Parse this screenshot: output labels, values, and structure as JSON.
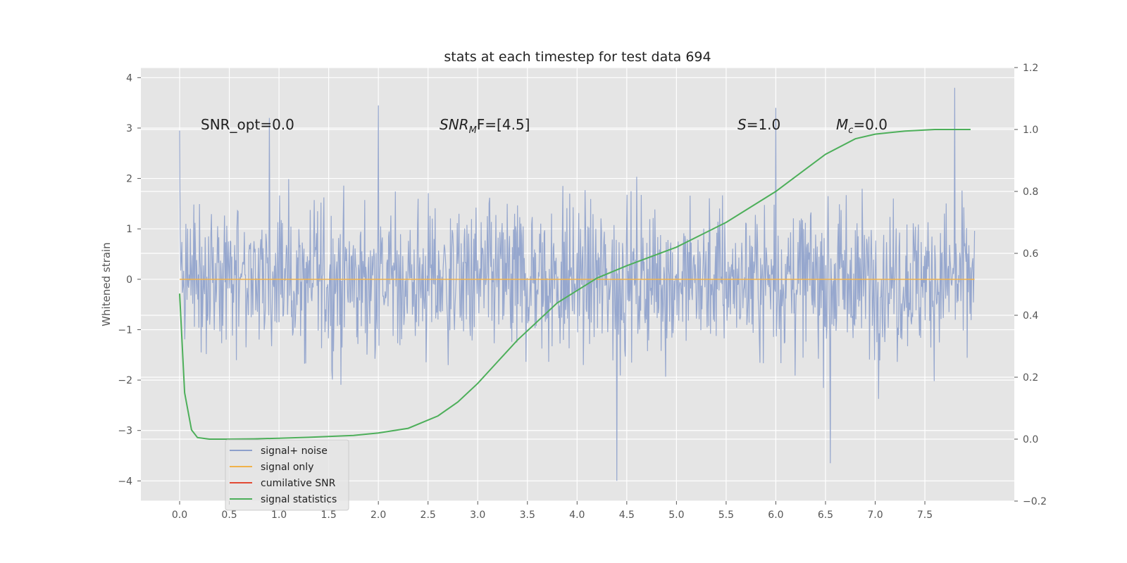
{
  "chart_data": {
    "type": "line",
    "title": "stats at each timestep for test data 694",
    "xlabel": "",
    "ylabel": "Whitened strain",
    "xlim": [
      -0.39,
      8.4
    ],
    "ylim": [
      -4.4,
      4.2
    ],
    "ylim_right": [
      -0.2,
      1.2
    ],
    "x_ticks": [
      "0.0",
      "0.5",
      "1.0",
      "1.5",
      "2.0",
      "2.5",
      "3.0",
      "3.5",
      "4.0",
      "4.5",
      "5.0",
      "5.5",
      "6.0",
      "6.5",
      "7.0",
      "7.5"
    ],
    "y_ticks": [
      "−4",
      "−3",
      "−2",
      "−1",
      "0",
      "1",
      "2",
      "3",
      "4"
    ],
    "y_ticks_right": [
      "−0.2",
      "0.0",
      "0.2",
      "0.4",
      "0.6",
      "0.8",
      "1.0",
      "1.2"
    ],
    "grid": true,
    "legend_position": "lower-left",
    "colors": {
      "background": "#e5e5e5",
      "grid": "#ffffff",
      "signal_noise": "#8da0cb",
      "signal_only": "#f0b24a",
      "cumulative_snr": "#e24a33",
      "signal_statistics": "#4daf5a"
    },
    "annotations": {
      "snr_opt": "SNR_opt=0.0",
      "snr_mf_main": "SNR",
      "snr_mf_sub": "M",
      "snr_mf_rest": "F=[4.5]",
      "s_var": "S",
      "s_value": "=1.0",
      "mc_var": "M",
      "mc_sub": "c",
      "mc_value": "=0.0"
    },
    "series": [
      {
        "name": "signal+ noise",
        "axis": "left",
        "x_range": [
          0.0,
          8.0
        ],
        "amplitude_envelope": [
          -4.0,
          3.8
        ],
        "peaks": [
          [
            0.0,
            2.95
          ],
          [
            0.9,
            3.2
          ],
          [
            2.0,
            3.45
          ],
          [
            4.4,
            -4.0
          ],
          [
            6.0,
            3.4
          ],
          [
            6.55,
            -3.65
          ],
          [
            7.8,
            3.85
          ]
        ]
      },
      {
        "name": "signal only",
        "axis": "left",
        "x": [
          0.0,
          8.0
        ],
        "y": [
          0.0,
          0.0
        ]
      },
      {
        "name": "cumilative SNR",
        "axis": "right",
        "x": [],
        "y": []
      },
      {
        "name": "signal statistics",
        "axis": "right",
        "x": [
          0.0,
          0.05,
          0.12,
          0.18,
          0.3,
          0.5,
          0.75,
          1.0,
          1.3,
          1.75,
          2.0,
          2.3,
          2.6,
          2.8,
          3.0,
          3.2,
          3.4,
          3.6,
          3.8,
          4.0,
          4.2,
          4.5,
          5.0,
          5.5,
          6.0,
          6.5,
          6.8,
          7.0,
          7.3,
          7.6,
          7.96
        ],
        "y": [
          0.47,
          0.15,
          0.03,
          0.005,
          0.0,
          0.0,
          0.001,
          0.003,
          0.006,
          0.012,
          0.02,
          0.035,
          0.075,
          0.12,
          0.18,
          0.25,
          0.32,
          0.38,
          0.44,
          0.48,
          0.52,
          0.56,
          0.62,
          0.7,
          0.8,
          0.92,
          0.97,
          0.985,
          0.995,
          1.0,
          1.0
        ]
      }
    ]
  }
}
